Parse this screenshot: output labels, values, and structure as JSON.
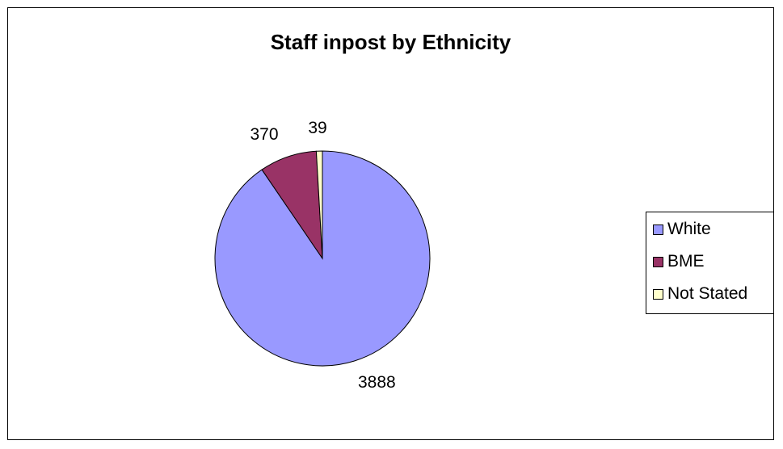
{
  "chart_data": {
    "type": "pie",
    "title": "Staff inpost by Ethnicity",
    "categories": [
      "White",
      "BME",
      "Not Stated"
    ],
    "values": [
      3888,
      370,
      39
    ],
    "colors": [
      "#9999FF",
      "#993366",
      "#FFFFCC"
    ],
    "legend_position": "right",
    "data_labels": [
      "3888",
      "370",
      "39"
    ]
  }
}
